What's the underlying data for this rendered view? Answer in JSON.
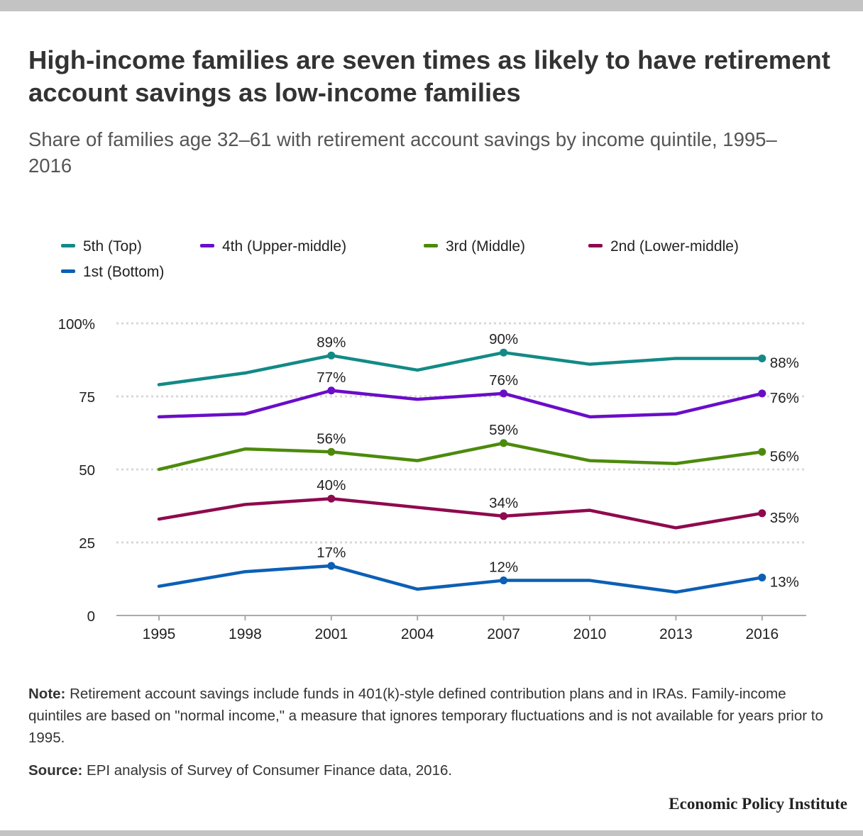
{
  "header": {
    "title": "High-income families are seven times as likely to have retirement account savings as low-income families",
    "subtitle": "Share of families age 32–61 with retirement account savings by income quintile, 1995–2016"
  },
  "footer": {
    "note_label": "Note:",
    "note_text": "Retirement account savings include funds in 401(k)-style defined contribution plans and in IRAs. Family-income quintiles are based on \"normal income,\" a measure that ignores temporary fluctuations and is not available for years prior to 1995.",
    "source_label": "Source:",
    "source_text": "EPI analysis of Survey of Consumer Finance data, 2016.",
    "brand": "Economic Policy Institute"
  },
  "chart_data": {
    "type": "line",
    "x": [
      "1995",
      "1998",
      "2001",
      "2004",
      "2007",
      "2010",
      "2013",
      "2016"
    ],
    "ylim": [
      0,
      100
    ],
    "yticks": [
      {
        "value": 0,
        "label": "0"
      },
      {
        "value": 25,
        "label": "25"
      },
      {
        "value": 50,
        "label": "50"
      },
      {
        "value": 75,
        "label": "75"
      },
      {
        "value": 100,
        "label": "100%"
      }
    ],
    "grid": true,
    "legend_placement": "top",
    "labeled_points": [
      2,
      4,
      7
    ],
    "series": [
      {
        "name": "5th (Top)",
        "color": "#138a87",
        "values": [
          79,
          83,
          89,
          84,
          90,
          86,
          88,
          88
        ],
        "labels": [
          "89%",
          "90%",
          "88%"
        ]
      },
      {
        "name": "4th (Upper-middle)",
        "color": "#6a0dc9",
        "values": [
          68,
          69,
          77,
          74,
          76,
          68,
          69,
          76
        ],
        "labels": [
          "77%",
          "76%",
          "76%"
        ]
      },
      {
        "name": "3rd (Middle)",
        "color": "#4c8a0c",
        "values": [
          50,
          57,
          56,
          53,
          59,
          53,
          52,
          56
        ],
        "labels": [
          "56%",
          "59%",
          "56%"
        ]
      },
      {
        "name": "2nd (Lower-middle)",
        "color": "#8e0a4e",
        "values": [
          33,
          38,
          40,
          37,
          34,
          36,
          30,
          35
        ],
        "labels": [
          "40%",
          "34%",
          "35%"
        ]
      },
      {
        "name": "1st (Bottom)",
        "color": "#0c5fb5",
        "values": [
          10,
          15,
          17,
          9,
          12,
          12,
          8,
          13
        ],
        "labels": [
          "17%",
          "12%",
          "13%"
        ]
      }
    ]
  }
}
